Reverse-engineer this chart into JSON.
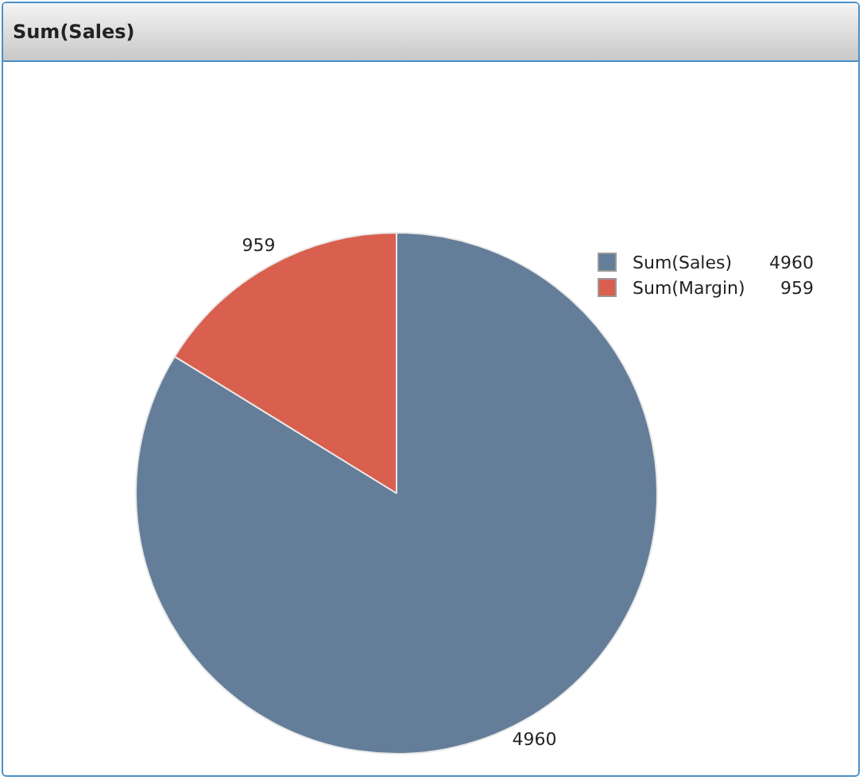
{
  "chart_data": {
    "type": "pie",
    "title": "Sum(Sales)",
    "categories": [
      "Sum(Sales)",
      "Sum(Margin)"
    ],
    "values": [
      4960,
      959
    ],
    "colors": [
      "#647d99",
      "#d9604e"
    ],
    "value_labels": [
      "4960",
      "959"
    ],
    "legend": "top right"
  }
}
